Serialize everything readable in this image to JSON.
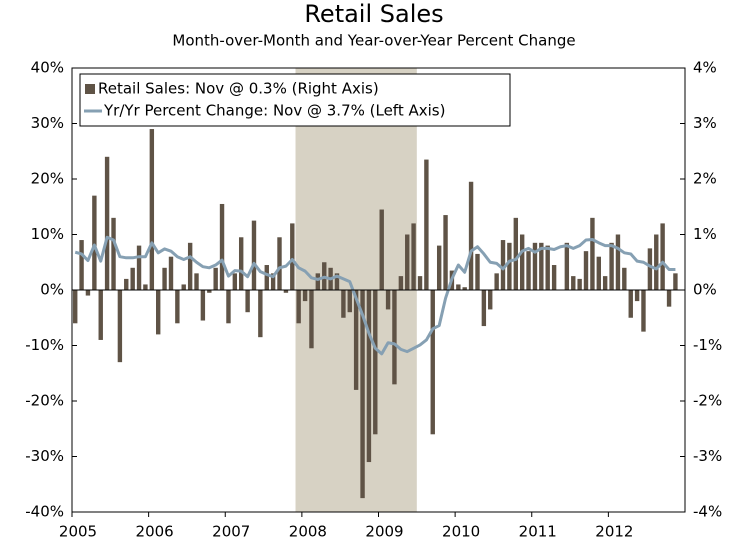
{
  "chart_data": {
    "type": "bar-line",
    "title": "Retail Sales",
    "subtitle": "Month-over-Month and Year-over-Year Percent Change",
    "x": [
      2005.042,
      2005.125,
      2005.208,
      2005.292,
      2005.375,
      2005.458,
      2005.542,
      2005.625,
      2005.708,
      2005.792,
      2005.875,
      2005.958,
      2006.042,
      2006.125,
      2006.208,
      2006.292,
      2006.375,
      2006.458,
      2006.542,
      2006.625,
      2006.708,
      2006.792,
      2006.875,
      2006.958,
      2007.042,
      2007.125,
      2007.208,
      2007.292,
      2007.375,
      2007.458,
      2007.542,
      2007.625,
      2007.708,
      2007.792,
      2007.875,
      2007.958,
      2008.042,
      2008.125,
      2008.208,
      2008.292,
      2008.375,
      2008.458,
      2008.542,
      2008.625,
      2008.708,
      2008.792,
      2008.875,
      2008.958,
      2009.042,
      2009.125,
      2009.208,
      2009.292,
      2009.375,
      2009.458,
      2009.542,
      2009.625,
      2009.708,
      2009.792,
      2009.875,
      2009.958,
      2010.042,
      2010.125,
      2010.208,
      2010.292,
      2010.375,
      2010.458,
      2010.542,
      2010.625,
      2010.708,
      2010.792,
      2010.875,
      2010.958,
      2011.042,
      2011.125,
      2011.208,
      2011.292,
      2011.375,
      2011.458,
      2011.542,
      2011.625,
      2011.708,
      2011.792,
      2011.875,
      2011.958,
      2012.042,
      2012.125,
      2012.208,
      2012.292,
      2012.375,
      2012.458,
      2012.542,
      2012.625,
      2012.708,
      2012.792,
      2012.875
    ],
    "series": [
      {
        "name": "Retail Sales: Nov @ 0.3% (Right Axis)",
        "type": "bar",
        "axis": "y2",
        "color": "#5f5346",
        "values": [
          -0.6,
          0.9,
          -0.1,
          1.7,
          -0.9,
          2.4,
          1.3,
          -1.3,
          0.2,
          0.4,
          0.8,
          0.1,
          2.9,
          -0.8,
          0.4,
          0.6,
          -0.6,
          0.1,
          0.85,
          0.3,
          -0.55,
          -0.05,
          0.4,
          1.55,
          -0.6,
          0.3,
          0.95,
          -0.4,
          1.25,
          -0.85,
          0.45,
          0.3,
          0.95,
          -0.05,
          1.2,
          -0.6,
          -0.2,
          -1.05,
          0.3,
          0.5,
          0.4,
          0.3,
          -0.5,
          -0.4,
          -1.8,
          -3.75,
          -3.1,
          -2.6,
          1.45,
          -0.35,
          -1.7,
          0.25,
          1.0,
          1.2,
          0.25,
          2.35,
          -2.6,
          0.8,
          1.35,
          0.35,
          0.1,
          0.05,
          1.95,
          0.65,
          -0.65,
          -0.35,
          0.3,
          0.9,
          0.85,
          1.3,
          1.0,
          0.7,
          0.85,
          0.85,
          0.8,
          0.45,
          0.0,
          0.85,
          0.25,
          0.2,
          0.7,
          1.3,
          0.6,
          0.25,
          0.85,
          1.0,
          0.4,
          -0.5,
          -0.2,
          -0.75,
          0.75,
          1.0,
          1.2,
          -0.3,
          0.3
        ]
      },
      {
        "name": "Yr/Yr Percent Change: Nov @ 3.7% (Left Axis)",
        "type": "line",
        "axis": "y",
        "color": "#86a0b3",
        "values": [
          6.8,
          6.5,
          5.3,
          8.1,
          5.2,
          9.5,
          9.0,
          6.0,
          5.8,
          5.8,
          6.0,
          6.0,
          8.5,
          6.7,
          7.4,
          7.0,
          6.0,
          5.5,
          6.0,
          5.0,
          4.2,
          4.0,
          4.5,
          5.4,
          2.5,
          3.5,
          3.4,
          2.4,
          4.8,
          3.3,
          2.8,
          2.4,
          4.0,
          4.3,
          5.5,
          4.0,
          3.4,
          2.2,
          1.9,
          2.3,
          2.0,
          2.5,
          2.0,
          1.5,
          -1.5,
          -4.5,
          -7.8,
          -10.5,
          -11.5,
          -9.5,
          -9.7,
          -10.7,
          -11.1,
          -10.5,
          -9.9,
          -9.0,
          -7.0,
          -6.4,
          -1.5,
          2.0,
          4.5,
          3.2,
          7.0,
          7.8,
          6.5,
          5.0,
          4.8,
          3.8,
          5.2,
          5.5,
          7.0,
          7.5,
          6.8,
          7.5,
          7.5,
          7.3,
          7.8,
          8.0,
          7.5,
          8.0,
          9.0,
          9.1,
          8.5,
          8.0,
          8.0,
          7.5,
          6.7,
          6.5,
          5.2,
          5.0,
          4.3,
          3.8,
          5.0,
          3.7,
          3.7
        ]
      }
    ],
    "recession": [
      2007.917,
      2009.5
    ],
    "recession_color": "#d7d2c4",
    "xlim": [
      2005,
      2013
    ],
    "xticks": [
      2005,
      2006,
      2007,
      2008,
      2009,
      2010,
      2011,
      2012
    ],
    "ylim": [
      -40,
      40
    ],
    "yticks": [
      {
        "value": -40,
        "label": "-40%"
      },
      {
        "value": -30,
        "label": "-30%"
      },
      {
        "value": -20,
        "label": "-20%"
      },
      {
        "value": -10,
        "label": "-10%"
      },
      {
        "value": 0,
        "label": "0%"
      },
      {
        "value": 10,
        "label": "10%"
      },
      {
        "value": 20,
        "label": "20%"
      },
      {
        "value": 30,
        "label": "30%"
      },
      {
        "value": 40,
        "label": "40%"
      }
    ],
    "y2lim": [
      -4,
      4
    ],
    "y2ticks": [
      {
        "value": -4,
        "label": "-4%"
      },
      {
        "value": -3,
        "label": "-3%"
      },
      {
        "value": -2,
        "label": "-2%"
      },
      {
        "value": -1,
        "label": "-1%"
      },
      {
        "value": 0,
        "label": "0%"
      },
      {
        "value": 1,
        "label": "1%"
      },
      {
        "value": 2,
        "label": "2%"
      },
      {
        "value": 3,
        "label": "3%"
      },
      {
        "value": 4,
        "label": "4%"
      }
    ],
    "legend": "top-left"
  }
}
